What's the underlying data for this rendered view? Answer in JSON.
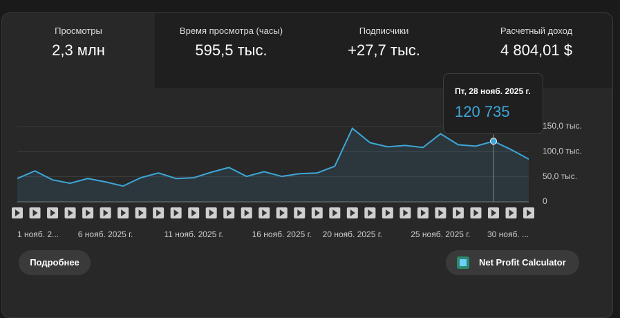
{
  "tabs": [
    {
      "label": "Просмотры",
      "value": "2,3 млн"
    },
    {
      "label": "Время просмотра (часы)",
      "value": "595,5 тыс."
    },
    {
      "label": "Подписчики",
      "value": "+27,7 тыс."
    },
    {
      "label": "Расчетный доход",
      "value": "4 804,01 $"
    }
  ],
  "chart_data": {
    "type": "area",
    "categories": [
      "1 нояб. 2...",
      null,
      null,
      null,
      null,
      "6 нояб. 2025 г.",
      null,
      null,
      null,
      null,
      "11 нояб. 2025 г.",
      null,
      null,
      null,
      null,
      "16 нояб. 2025 г.",
      null,
      null,
      null,
      "20 нояб. 2025 г.",
      null,
      null,
      null,
      null,
      "25 нояб. 2025 г.",
      null,
      null,
      null,
      null,
      "30 нояб. ..."
    ],
    "values": [
      46500,
      61600,
      43800,
      37000,
      46500,
      39700,
      31500,
      48000,
      57500,
      46500,
      48000,
      59000,
      68500,
      50700,
      60000,
      50700,
      56000,
      57500,
      71000,
      146500,
      117800,
      109600,
      112300,
      108200,
      135600,
      113700,
      111000,
      120735,
      104000,
      85000
    ],
    "color": "#3ea6d8",
    "ylim": [
      0,
      150000
    ],
    "yticks": [
      0,
      {
        "value": 50000,
        "label": "50,0 тыс."
      },
      {
        "value": 100000,
        "label": "100,0 тыс."
      },
      {
        "value": 150000,
        "label": "150,0 тыс."
      }
    ],
    "grid": true,
    "tooltip": {
      "index": 27,
      "date": "Пт, 28 нояб. 2025 г.",
      "label": "120 735"
    }
  },
  "buttons": {
    "details": "Подробнее",
    "calculator": "Net Profit Calculator"
  }
}
